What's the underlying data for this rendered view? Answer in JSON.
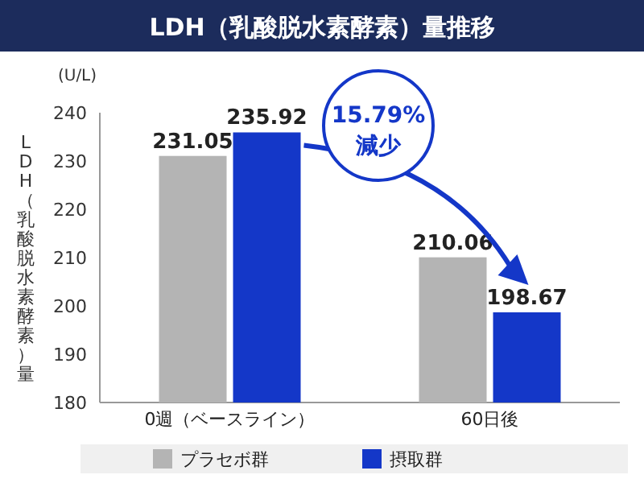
{
  "chart_data": {
    "type": "bar",
    "title": "LDH（乳酸脱水素酵素）量推移",
    "ylabel": "LDH（乳酸脱水素酵素）量",
    "categories": [
      "0週（ベースライン）",
      "60日後"
    ],
    "series": [
      {
        "name": "プラセボ群",
        "color": "#b4b4b4",
        "values": [
          231.05,
          210.06
        ]
      },
      {
        "name": "摂取群",
        "color": "#1437c8",
        "values": [
          235.92,
          198.67
        ]
      }
    ],
    "ylim": [
      180,
      240
    ],
    "yticks": [
      180,
      190,
      200,
      210,
      220,
      230,
      240
    ],
    "data_labels": true,
    "legend": "bottom",
    "grid": false,
    "annotations": [
      "(U/L)",
      "15.79%減少"
    ]
  }
}
